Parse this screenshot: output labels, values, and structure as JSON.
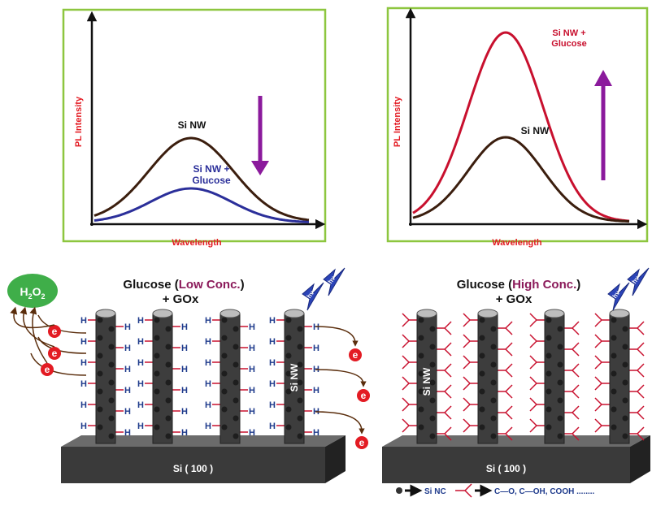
{
  "top_left": {
    "y_axis": "PL Intensity",
    "x_axis": "Wavelength",
    "label_upper": "Si NW",
    "label_lower": [
      "Si NW +",
      "Glucose"
    ]
  },
  "top_right": {
    "y_axis": "PL Intensity",
    "x_axis": "Wavelength",
    "label_upper": [
      "Si NW +",
      "Glucose"
    ],
    "label_lower": "Si NW"
  },
  "bottom_left": {
    "title": [
      "Glucose (",
      "Low Conc.",
      ")"
    ],
    "subtitle": "+ GOx",
    "product": [
      "H",
      "2",
      "O",
      "2"
    ],
    "electron": "e",
    "hydrogen": "H",
    "nanowire": "Si NW",
    "substrate": "Si ( 100 )",
    "photon": "hν"
  },
  "bottom_right": {
    "title": [
      "Glucose (",
      "High Conc.",
      ")"
    ],
    "subtitle": "+ GOx",
    "nanowire": "Si NW",
    "substrate": "Si ( 100 )",
    "photon": "hν"
  },
  "legend": {
    "nanocrystal": "Si NC",
    "groups": "C—O, C—OH,  COOH ........"
  }
}
